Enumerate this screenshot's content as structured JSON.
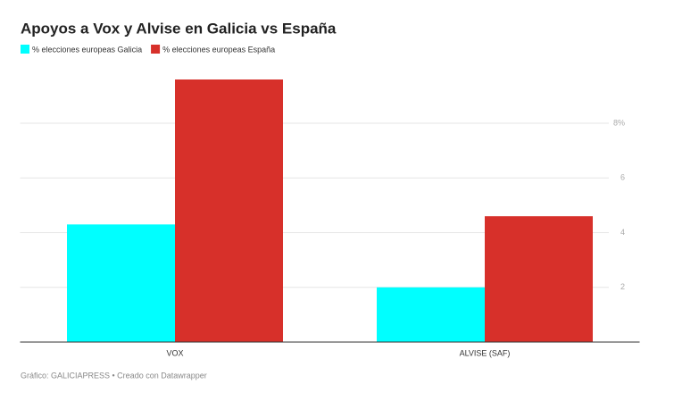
{
  "chart_data": {
    "type": "bar",
    "title": "Apoyos a Vox y Alvise en Galicia vs España",
    "categories": [
      "VOX",
      "ALVISE (SAF)"
    ],
    "series": [
      {
        "name": "% elecciones europeas Galicia",
        "color": "#00ffff",
        "values": [
          4.3,
          2.0
        ]
      },
      {
        "name": "% elecciones europeas España",
        "color": "#d7302a",
        "values": [
          9.6,
          4.6
        ]
      }
    ],
    "ylim": [
      0,
      9.6
    ],
    "yticks": [
      2,
      4,
      6,
      {
        "value": 8,
        "label": "8%"
      }
    ],
    "grid": true,
    "source": "Gráfico: GALICIAPRESS • Creado con Datawrapper"
  }
}
